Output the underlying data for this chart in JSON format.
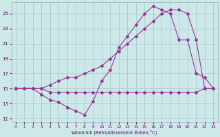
{
  "xlabel": "Windchill (Refroidissement éolien,°C)",
  "bg_color": "#cce8e8",
  "grid_color": "#aacccc",
  "line_color": "#993399",
  "xlim": [
    -0.5,
    23.5
  ],
  "ylim": [
    10.5,
    26.5
  ],
  "xticks": [
    0,
    1,
    2,
    3,
    4,
    5,
    6,
    7,
    8,
    9,
    10,
    11,
    12,
    13,
    14,
    15,
    16,
    17,
    18,
    19,
    20,
    21,
    22,
    23
  ],
  "yticks": [
    11,
    13,
    15,
    17,
    19,
    21,
    23,
    25
  ],
  "line1_x": [
    0,
    1,
    2,
    3,
    4,
    5,
    6,
    7,
    8,
    9,
    10,
    11,
    12,
    13,
    14,
    15,
    16,
    17,
    18,
    19,
    20,
    21,
    22,
    23
  ],
  "line1_y": [
    15,
    15,
    15,
    14.2,
    13.5,
    13.2,
    12.5,
    12.0,
    11.5,
    13.3,
    16.0,
    17.5,
    20.5,
    22.0,
    23.5,
    25.0,
    26.0,
    25.5,
    25.0,
    21.5,
    21.5,
    17.0,
    16.5,
    15.0
  ],
  "line2_x": [
    0,
    1,
    2,
    3,
    4,
    5,
    6,
    7,
    8,
    9,
    10,
    11,
    12,
    13,
    14,
    15,
    16,
    17,
    18,
    19,
    20,
    21,
    22,
    23
  ],
  "line2_y": [
    15,
    15,
    15,
    15,
    14.5,
    14.5,
    14.5,
    14.5,
    14.5,
    14.5,
    14.5,
    14.5,
    14.5,
    14.5,
    14.5,
    14.5,
    14.5,
    14.5,
    14.5,
    14.5,
    14.5,
    14.5,
    15.0,
    15.0
  ],
  "line3_x": [
    0,
    1,
    2,
    3,
    4,
    5,
    6,
    7,
    8,
    9,
    10,
    11,
    12,
    13,
    14,
    15,
    16,
    17,
    18,
    19,
    20,
    21,
    22,
    23
  ],
  "line3_y": [
    15,
    15,
    15,
    15,
    15.5,
    16.0,
    16.5,
    16.5,
    17.0,
    17.5,
    18.0,
    19.0,
    20.0,
    21.0,
    22.0,
    23.0,
    24.0,
    25.0,
    25.5,
    25.5,
    25.0,
    21.5,
    15.0,
    15.0
  ]
}
